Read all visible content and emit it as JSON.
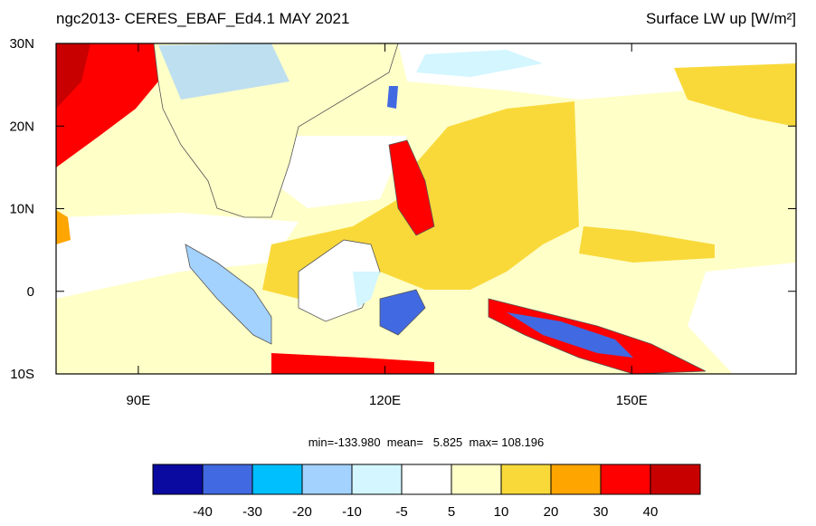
{
  "header": {
    "left_title": "ngc2013- CERES_EBAF_Ed4.1 MAY 2021",
    "right_title": "Surface LW up [W/m²]"
  },
  "map": {
    "lon_range": [
      80,
      170
    ],
    "lat_range": [
      -10,
      30
    ],
    "lon_ticks": [
      {
        "value": 90,
        "label": "90E"
      },
      {
        "value": 120,
        "label": "120E"
      },
      {
        "value": 150,
        "label": "150E"
      }
    ],
    "lat_ticks": [
      {
        "value": 30,
        "label": "30N"
      },
      {
        "value": 20,
        "label": "20N"
      },
      {
        "value": 10,
        "label": "10N"
      },
      0,
      {
        "value": -10,
        "label": "10S"
      }
    ]
  },
  "stats": "min=-133.980  mean=   5.825  max= 108.196",
  "colorbar": {
    "levels": [
      -40,
      -30,
      -20,
      -10,
      -5,
      5,
      10,
      20,
      30,
      40
    ],
    "colors": [
      "#0a0aa0",
      "#4169e1",
      "#00bfff",
      "#a3d2ff",
      "#d3f6ff",
      "#ffffff",
      "#ffffc8",
      "#f9d93a",
      "#ffa500",
      "#ff0000",
      "#c80000"
    ]
  }
}
